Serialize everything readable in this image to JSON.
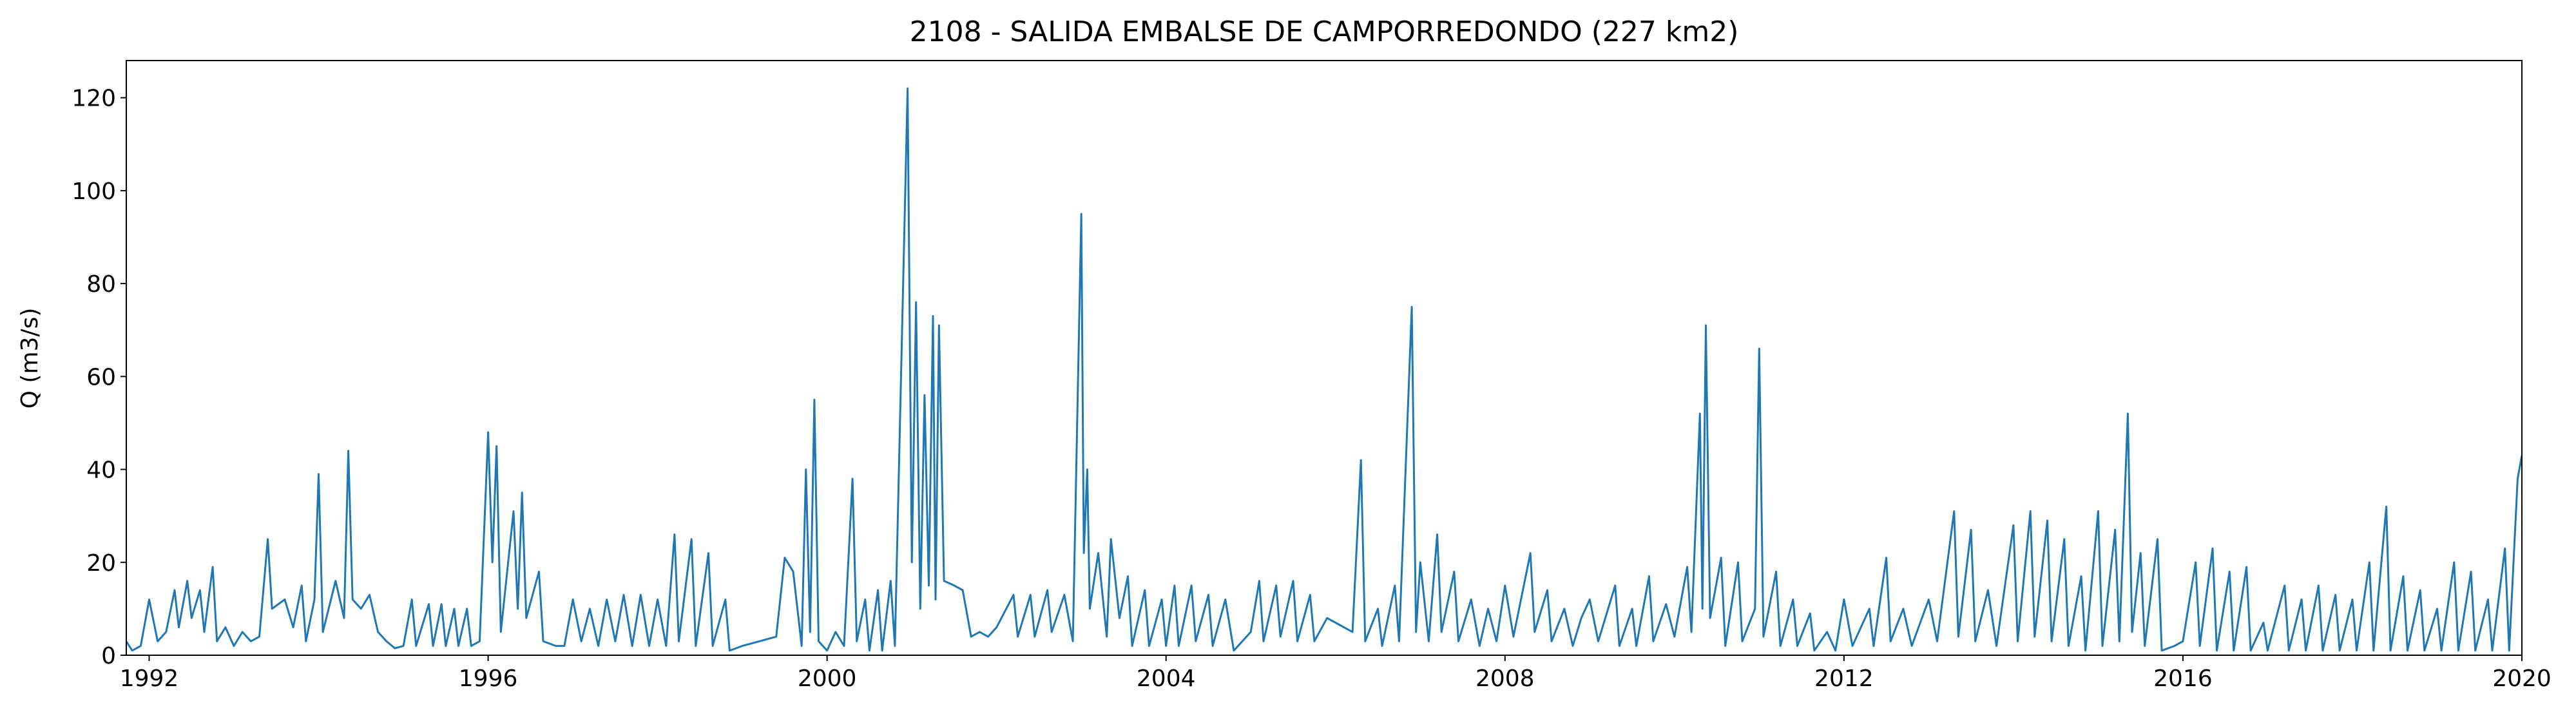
{
  "chart_data": {
    "type": "line",
    "title": "2108 - SALIDA EMBALSE DE CAMPORREDONDO (227 km2)",
    "ylabel": "Q (m3/s)",
    "color": "#1f77b4",
    "xlim": [
      1991.73,
      2020
    ],
    "xticks": [
      1992,
      1996,
      2000,
      2004,
      2008,
      2012,
      2016,
      2020
    ],
    "ylim": [
      0,
      128
    ],
    "yticks": [
      0,
      20,
      40,
      60,
      80,
      100,
      120
    ],
    "grid": false,
    "x": [
      1991.73,
      1991.8,
      1991.9,
      1992.0,
      1992.1,
      1992.2,
      1992.3,
      1992.35,
      1992.45,
      1992.5,
      1992.6,
      1992.65,
      1992.75,
      1992.8,
      1992.9,
      1993.0,
      1993.1,
      1993.2,
      1993.3,
      1993.4,
      1993.45,
      1993.6,
      1993.7,
      1993.8,
      1993.85,
      1993.95,
      1994.0,
      1994.05,
      1994.2,
      1994.3,
      1994.35,
      1994.4,
      1994.5,
      1994.6,
      1994.7,
      1994.8,
      1994.9,
      1995.0,
      1995.1,
      1995.15,
      1995.3,
      1995.35,
      1995.45,
      1995.5,
      1995.6,
      1995.65,
      1995.75,
      1995.8,
      1995.9,
      1996.0,
      1996.05,
      1996.1,
      1996.15,
      1996.3,
      1996.35,
      1996.4,
      1996.45,
      1996.6,
      1996.65,
      1996.8,
      1996.9,
      1997.0,
      1997.1,
      1997.2,
      1997.3,
      1997.4,
      1997.5,
      1997.6,
      1997.7,
      1997.8,
      1997.9,
      1998.0,
      1998.1,
      1998.2,
      1998.25,
      1998.4,
      1998.45,
      1998.6,
      1998.65,
      1998.8,
      1998.85,
      1999.0,
      1999.2,
      1999.4,
      1999.5,
      1999.6,
      1999.7,
      1999.75,
      1999.8,
      1999.85,
      1999.9,
      2000.0,
      2000.1,
      2000.2,
      2000.3,
      2000.35,
      2000.45,
      2000.5,
      2000.6,
      2000.65,
      2000.75,
      2000.8,
      2000.95,
      2001.0,
      2001.05,
      2001.1,
      2001.15,
      2001.2,
      2001.25,
      2001.28,
      2001.32,
      2001.38,
      2001.5,
      2001.6,
      2001.7,
      2001.8,
      2001.9,
      2002.0,
      2002.2,
      2002.25,
      2002.4,
      2002.45,
      2002.6,
      2002.65,
      2002.8,
      2002.9,
      2003.0,
      2003.03,
      2003.07,
      2003.1,
      2003.2,
      2003.3,
      2003.35,
      2003.45,
      2003.55,
      2003.6,
      2003.75,
      2003.8,
      2003.95,
      2004.0,
      2004.1,
      2004.15,
      2004.3,
      2004.35,
      2004.5,
      2004.55,
      2004.7,
      2004.8,
      2004.9,
      2005.0,
      2005.1,
      2005.15,
      2005.3,
      2005.35,
      2005.5,
      2005.55,
      2005.7,
      2005.75,
      2005.9,
      2006.0,
      2006.2,
      2006.3,
      2006.35,
      2006.5,
      2006.55,
      2006.7,
      2006.75,
      2006.9,
      2006.95,
      2007.0,
      2007.1,
      2007.2,
      2007.25,
      2007.4,
      2007.45,
      2007.6,
      2007.7,
      2007.8,
      2007.9,
      2008.0,
      2008.1,
      2008.3,
      2008.35,
      2008.5,
      2008.55,
      2008.7,
      2008.8,
      2008.9,
      2009.0,
      2009.1,
      2009.3,
      2009.35,
      2009.5,
      2009.55,
      2009.7,
      2009.75,
      2009.9,
      2010.0,
      2010.15,
      2010.2,
      2010.3,
      2010.33,
      2010.37,
      2010.42,
      2010.55,
      2010.6,
      2010.75,
      2010.8,
      2010.95,
      2011.0,
      2011.05,
      2011.2,
      2011.25,
      2011.4,
      2011.45,
      2011.6,
      2011.65,
      2011.8,
      2011.9,
      2012.0,
      2012.1,
      2012.3,
      2012.35,
      2012.5,
      2012.55,
      2012.7,
      2012.8,
      2013.0,
      2013.1,
      2013.3,
      2013.35,
      2013.5,
      2013.55,
      2013.7,
      2013.8,
      2014.0,
      2014.05,
      2014.2,
      2014.25,
      2014.4,
      2014.45,
      2014.6,
      2014.65,
      2014.8,
      2014.85,
      2015.0,
      2015.05,
      2015.2,
      2015.25,
      2015.35,
      2015.4,
      2015.5,
      2015.55,
      2015.7,
      2015.75,
      2015.9,
      2016.0,
      2016.15,
      2016.2,
      2016.35,
      2016.4,
      2016.55,
      2016.6,
      2016.75,
      2016.8,
      2016.95,
      2017.0,
      2017.2,
      2017.25,
      2017.4,
      2017.45,
      2017.6,
      2017.65,
      2017.8,
      2017.85,
      2018.0,
      2018.05,
      2018.2,
      2018.25,
      2018.4,
      2018.45,
      2018.6,
      2018.65,
      2018.8,
      2018.85,
      2019.0,
      2019.05,
      2019.2,
      2019.25,
      2019.4,
      2019.45,
      2019.6,
      2019.65,
      2019.8,
      2019.85,
      2019.95,
      2020.0
    ],
    "values": [
      3,
      1,
      2,
      12,
      3,
      5,
      14,
      6,
      16,
      8,
      14,
      5,
      19,
      3,
      6,
      2,
      5,
      3,
      4,
      25,
      10,
      12,
      6,
      15,
      3,
      12,
      39,
      5,
      16,
      8,
      44,
      12,
      10,
      13,
      5,
      3,
      1.5,
      2,
      12,
      2,
      11,
      2,
      11,
      2,
      10,
      2,
      10,
      2,
      3,
      48,
      20,
      45,
      5,
      31,
      10,
      35,
      8,
      18,
      3,
      2,
      2,
      12,
      3,
      10,
      2,
      12,
      3,
      13,
      2,
      13,
      2,
      12,
      2,
      26,
      3,
      25,
      2,
      22,
      2,
      12,
      1,
      2,
      3,
      4,
      21,
      18,
      2,
      40,
      5,
      55,
      3,
      1,
      5,
      2,
      38,
      3,
      12,
      1,
      14,
      1,
      16,
      2,
      122,
      20,
      76,
      10,
      56,
      15,
      73,
      12,
      71,
      16,
      15,
      14,
      4,
      5,
      4,
      6,
      13,
      4,
      13,
      4,
      14,
      5,
      13,
      3,
      95,
      22,
      40,
      10,
      22,
      4,
      25,
      8,
      17,
      2,
      14,
      2,
      12,
      2,
      15,
      2,
      15,
      3,
      13,
      2,
      12,
      1,
      3,
      5,
      16,
      3,
      15,
      4,
      16,
      3,
      13,
      3,
      8,
      7,
      5,
      42,
      3,
      10,
      2,
      15,
      3,
      75,
      5,
      20,
      3,
      26,
      5,
      18,
      3,
      12,
      2,
      10,
      3,
      15,
      4,
      22,
      5,
      14,
      3,
      10,
      2,
      8,
      12,
      3,
      15,
      2,
      10,
      2,
      17,
      3,
      11,
      4,
      19,
      5,
      52,
      10,
      71,
      8,
      21,
      2,
      20,
      3,
      10,
      66,
      4,
      18,
      2,
      12,
      2,
      9,
      1,
      5,
      1,
      12,
      2,
      10,
      2,
      21,
      3,
      10,
      2,
      12,
      3,
      31,
      4,
      27,
      3,
      14,
      2,
      28,
      3,
      31,
      4,
      29,
      3,
      25,
      2,
      17,
      1,
      31,
      2,
      27,
      3,
      52,
      5,
      22,
      2,
      25,
      1,
      2,
      3,
      20,
      2,
      23,
      1,
      18,
      1,
      19,
      1,
      7,
      1,
      15,
      1,
      12,
      1,
      15,
      1,
      13,
      1,
      12,
      1,
      20,
      1,
      32,
      1,
      17,
      1,
      14,
      1,
      10,
      1,
      20,
      1,
      18,
      1,
      12,
      1,
      23,
      1,
      38,
      43
    ]
  }
}
